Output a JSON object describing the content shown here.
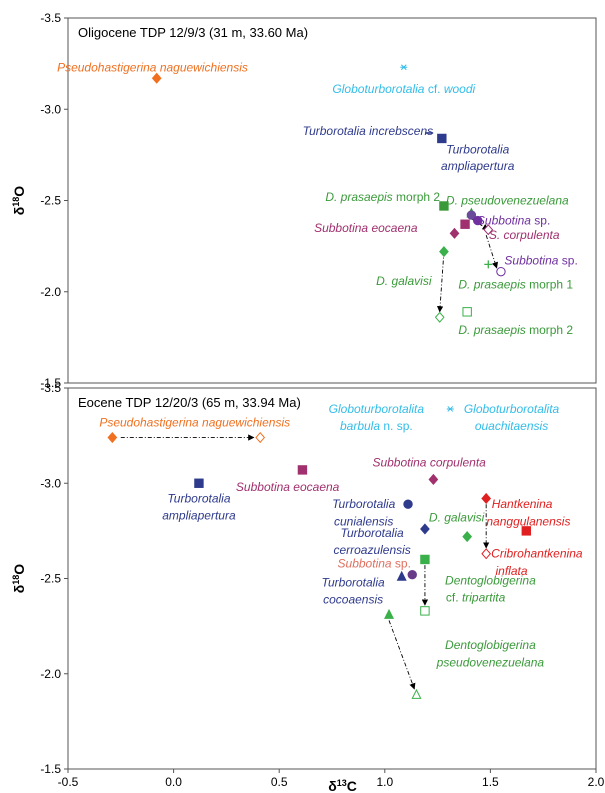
{
  "chart_data": [
    {
      "type": "scatter",
      "title": "Oligocene TDP 12/9/3 (31 m, 33.60 Ma)",
      "ylabel": "δ18O",
      "ylim": [
        -1.5,
        -3.5
      ],
      "y_reversed": true,
      "y_ticks": [
        "-3.5",
        "-3.0",
        "-2.5",
        "-2.0",
        "-1.5"
      ],
      "points": [
        {
          "x": -0.08,
          "y": -3.17,
          "marker": "diamond",
          "filled": true,
          "color": "#f07020"
        },
        {
          "x": 1.09,
          "y": -3.23,
          "marker": "asterisk",
          "filled": true,
          "color": "#33bde8"
        },
        {
          "x": 1.21,
          "y": -2.87,
          "marker": "dash",
          "filled": true,
          "color": "#2e3a8c"
        },
        {
          "x": 1.27,
          "y": -2.84,
          "marker": "square",
          "filled": true,
          "color": "#2e3a8c"
        },
        {
          "x": 1.28,
          "y": -2.47,
          "marker": "square",
          "filled": true,
          "color": "#3a9a3a"
        },
        {
          "x": 1.41,
          "y": -2.43,
          "marker": "triangle",
          "filled": true,
          "color": "#3a9a3a"
        },
        {
          "x": 1.41,
          "y": -2.42,
          "marker": "circle",
          "filled": true,
          "color": "#6a4a9a"
        },
        {
          "x": 1.44,
          "y": -2.39,
          "marker": "circle",
          "filled": true,
          "color": "#7030a0"
        },
        {
          "x": 1.38,
          "y": -2.37,
          "marker": "square",
          "filled": true,
          "color": "#a0306e"
        },
        {
          "x": 1.33,
          "y": -2.32,
          "marker": "diamond",
          "filled": true,
          "color": "#a0306e"
        },
        {
          "x": 1.49,
          "y": -2.34,
          "marker": "diamond",
          "filled": false,
          "color": "#a0306e"
        },
        {
          "x": 1.28,
          "y": -2.22,
          "marker": "diamond",
          "filled": true,
          "color": "#3ab04a"
        },
        {
          "x": 1.49,
          "y": -2.15,
          "marker": "plus",
          "filled": true,
          "color": "#3ab04a"
        },
        {
          "x": 1.55,
          "y": -2.11,
          "marker": "circle",
          "filled": false,
          "color": "#7030a0"
        },
        {
          "x": 1.26,
          "y": -1.86,
          "marker": "diamond",
          "filled": false,
          "color": "#3ab04a"
        },
        {
          "x": 1.39,
          "y": -1.89,
          "marker": "square",
          "filled": false,
          "color": "#3ab04a"
        }
      ],
      "arrows": [
        {
          "from": [
            1.28,
            -2.22
          ],
          "to": [
            1.26,
            -1.89
          ]
        },
        {
          "from": [
            1.41,
            -2.4
          ],
          "to": [
            1.49,
            -2.34
          ]
        },
        {
          "from": [
            1.48,
            -2.31
          ],
          "to": [
            1.53,
            -2.13
          ]
        }
      ],
      "labels": [
        {
          "parts": [
            {
              "t": "Pseudohastigerina naguewichiensis",
              "i": true
            }
          ],
          "color": "#f07020",
          "x": -0.1,
          "y": -3.23,
          "anchor": "middle"
        },
        {
          "parts": [
            {
              "t": "Globoturborotalia",
              "i": true
            },
            {
              "t": " cf. ",
              "i": false
            },
            {
              "t": "woodi",
              "i": true
            }
          ],
          "color": "#33bde8",
          "x": 1.09,
          "y": -3.11,
          "anchor": "middle"
        },
        {
          "parts": [
            {
              "t": "Turborotalia increbscens",
              "i": true
            }
          ],
          "color": "#2e3a8c",
          "x": 0.92,
          "y": -2.88,
          "anchor": "middle"
        },
        {
          "parts": [
            {
              "t": "Turborotalia",
              "i": true
            }
          ],
          "color": "#2e3a8c",
          "x": 1.44,
          "y": -2.78,
          "anchor": "middle"
        },
        {
          "parts": [
            {
              "t": "ampliapertura",
              "i": true
            }
          ],
          "color": "#2e3a8c",
          "x": 1.44,
          "y": -2.69,
          "anchor": "middle"
        },
        {
          "parts": [
            {
              "t": "D. prasaepis",
              "i": true
            },
            {
              "t": " morph 2",
              "i": false
            }
          ],
          "color": "#3a9a3a",
          "x": 0.99,
          "y": -2.52,
          "anchor": "middle"
        },
        {
          "parts": [
            {
              "t": "D. pseudovenezuelana",
              "i": true
            }
          ],
          "color": "#3a9a3a",
          "x": 1.58,
          "y": -2.5,
          "anchor": "middle"
        },
        {
          "parts": [
            {
              "t": "Subbotina eocaena",
              "i": true
            }
          ],
          "color": "#a0306e",
          "x": 0.91,
          "y": -2.35,
          "anchor": "middle"
        },
        {
          "parts": [
            {
              "t": "Subbotina",
              "i": true
            },
            {
              "t": " sp.",
              "i": false
            }
          ],
          "color": "#7030a0",
          "x": 1.61,
          "y": -2.39,
          "anchor": "middle"
        },
        {
          "parts": [
            {
              "t": "S. corpulenta",
              "i": true
            }
          ],
          "color": "#a0306e",
          "x": 1.66,
          "y": -2.31,
          "anchor": "middle"
        },
        {
          "parts": [
            {
              "t": "Subbotina",
              "i": true
            },
            {
              "t": " sp.",
              "i": false
            }
          ],
          "color": "#7030a0",
          "x": 1.74,
          "y": -2.17,
          "anchor": "middle"
        },
        {
          "parts": [
            {
              "t": "D. galavisi",
              "i": true
            }
          ],
          "color": "#3a9a3a",
          "x": 1.09,
          "y": -2.06,
          "anchor": "middle"
        },
        {
          "parts": [
            {
              "t": "D. prasaepis",
              "i": true
            },
            {
              "t": " morph 1",
              "i": false
            }
          ],
          "color": "#3a9a3a",
          "x": 1.62,
          "y": -2.04,
          "anchor": "middle"
        },
        {
          "parts": [
            {
              "t": "D. prasaepis",
              "i": true
            },
            {
              "t": " morph 2",
              "i": false
            }
          ],
          "color": "#3a9a3a",
          "x": 1.62,
          "y": -1.79,
          "anchor": "middle"
        }
      ]
    },
    {
      "type": "scatter",
      "title": "Eocene TDP 12/20/3 (65 m, 33.94 Ma)",
      "xlabel": "δ13C",
      "ylabel": "δ18O",
      "xlim": [
        -0.5,
        2.0
      ],
      "ylim": [
        -1.5,
        -3.5
      ],
      "y_reversed": true,
      "x_ticks": [
        "-0.5",
        "0.0",
        "0.5",
        "1.0",
        "1.5",
        "2.0"
      ],
      "y_ticks": [
        "-3.5",
        "-3.0",
        "-2.5",
        "-2.0",
        "-1.5"
      ],
      "points": [
        {
          "x": -0.29,
          "y": -3.24,
          "marker": "diamond",
          "filled": true,
          "color": "#f07020"
        },
        {
          "x": 0.41,
          "y": -3.24,
          "marker": "diamond",
          "filled": false,
          "color": "#f07020"
        },
        {
          "x": 1.31,
          "y": -3.39,
          "marker": "asterisk",
          "filled": true,
          "color": "#33bde8"
        },
        {
          "x": 0.12,
          "y": -3.0,
          "marker": "square",
          "filled": true,
          "color": "#2e3a8c"
        },
        {
          "x": 0.61,
          "y": -3.07,
          "marker": "square",
          "filled": true,
          "color": "#a0306e"
        },
        {
          "x": 1.23,
          "y": -3.02,
          "marker": "diamond",
          "filled": true,
          "color": "#a0306e"
        },
        {
          "x": 1.11,
          "y": -2.89,
          "marker": "circle",
          "filled": true,
          "color": "#2e3a8c"
        },
        {
          "x": 1.19,
          "y": -2.76,
          "marker": "diamond",
          "filled": true,
          "color": "#2e3a8c"
        },
        {
          "x": 1.48,
          "y": -2.92,
          "marker": "diamond",
          "filled": true,
          "color": "#e02020"
        },
        {
          "x": 1.67,
          "y": -2.75,
          "marker": "square",
          "filled": true,
          "color": "#e02020"
        },
        {
          "x": 1.39,
          "y": -2.72,
          "marker": "diamond",
          "filled": true,
          "color": "#3ab04a"
        },
        {
          "x": 1.48,
          "y": -2.63,
          "marker": "diamond",
          "filled": false,
          "color": "#e02020"
        },
        {
          "x": 1.19,
          "y": -2.6,
          "marker": "square",
          "filled": true,
          "color": "#3ab04a"
        },
        {
          "x": 1.13,
          "y": -2.52,
          "marker": "circle",
          "filled": true,
          "color": "#6a3a8a"
        },
        {
          "x": 1.08,
          "y": -2.51,
          "marker": "triangle",
          "filled": true,
          "color": "#2e3a8c"
        },
        {
          "x": 1.19,
          "y": -2.33,
          "marker": "square",
          "filled": false,
          "color": "#3ab04a"
        },
        {
          "x": 1.02,
          "y": -2.31,
          "marker": "triangle",
          "filled": true,
          "color": "#3ab04a"
        },
        {
          "x": 1.15,
          "y": -1.89,
          "marker": "triangle",
          "filled": false,
          "color": "#3ab04a"
        }
      ],
      "arrows": [
        {
          "from": [
            -0.25,
            -3.24
          ],
          "to": [
            0.38,
            -3.24
          ]
        },
        {
          "from": [
            1.48,
            -2.89
          ],
          "to": [
            1.48,
            -2.66
          ]
        },
        {
          "from": [
            1.19,
            -2.57
          ],
          "to": [
            1.19,
            -2.36
          ]
        },
        {
          "from": [
            1.02,
            -2.28
          ],
          "to": [
            1.14,
            -1.92
          ]
        }
      ],
      "labels": [
        {
          "parts": [
            {
              "t": "Pseudohastigerina naguewichiensis",
              "i": true
            }
          ],
          "color": "#f07020",
          "x": 0.1,
          "y": -3.32,
          "anchor": "middle"
        },
        {
          "parts": [
            {
              "t": "Globoturborotalita",
              "i": true
            }
          ],
          "color": "#33bde8",
          "x": 0.96,
          "y": -3.39,
          "anchor": "middle"
        },
        {
          "parts": [
            {
              "t": "barbula",
              "i": true
            },
            {
              "t": " n. sp.",
              "i": false
            }
          ],
          "color": "#33bde8",
          "x": 0.96,
          "y": -3.3,
          "anchor": "middle"
        },
        {
          "parts": [
            {
              "t": "Globoturborotalita",
              "i": true
            }
          ],
          "color": "#33bde8",
          "x": 1.6,
          "y": -3.39,
          "anchor": "middle"
        },
        {
          "parts": [
            {
              "t": "ouachitaensis",
              "i": true
            }
          ],
          "color": "#33bde8",
          "x": 1.6,
          "y": -3.3,
          "anchor": "middle"
        },
        {
          "parts": [
            {
              "t": "Subbotina corpulenta",
              "i": true
            }
          ],
          "color": "#a0306e",
          "x": 1.21,
          "y": -3.11,
          "anchor": "middle"
        },
        {
          "parts": [
            {
              "t": "Subbotina eocaena",
              "i": true
            }
          ],
          "color": "#a0306e",
          "x": 0.54,
          "y": -2.98,
          "anchor": "middle"
        },
        {
          "parts": [
            {
              "t": "Turborotalia",
              "i": true
            }
          ],
          "color": "#2e3a8c",
          "x": 0.12,
          "y": -2.92,
          "anchor": "middle"
        },
        {
          "parts": [
            {
              "t": "ampliapertura",
              "i": true
            }
          ],
          "color": "#2e3a8c",
          "x": 0.12,
          "y": -2.83,
          "anchor": "middle"
        },
        {
          "parts": [
            {
              "t": "Turborotalia",
              "i": true
            }
          ],
          "color": "#2e3a8c",
          "x": 0.9,
          "y": -2.89,
          "anchor": "middle"
        },
        {
          "parts": [
            {
              "t": "cunialensis",
              "i": true
            }
          ],
          "color": "#2e3a8c",
          "x": 0.9,
          "y": -2.8,
          "anchor": "middle"
        },
        {
          "parts": [
            {
              "t": "Turborotalia",
              "i": true
            }
          ],
          "color": "#2e3a8c",
          "x": 0.94,
          "y": -2.74,
          "anchor": "middle"
        },
        {
          "parts": [
            {
              "t": "cerroazulensis",
              "i": true
            }
          ],
          "color": "#2e3a8c",
          "x": 0.94,
          "y": -2.65,
          "anchor": "middle"
        },
        {
          "parts": [
            {
              "t": "D. galavisi",
              "i": true
            }
          ],
          "color": "#3a9a3a",
          "x": 1.34,
          "y": -2.82,
          "anchor": "middle"
        },
        {
          "parts": [
            {
              "t": "Hantkenina",
              "i": true
            }
          ],
          "color": "#e02020",
          "x": 1.65,
          "y": -2.89,
          "anchor": "middle"
        },
        {
          "parts": [
            {
              "t": "nanggulanensis",
              "i": true
            }
          ],
          "color": "#e02020",
          "x": 1.68,
          "y": -2.8,
          "anchor": "middle"
        },
        {
          "parts": [
            {
              "t": "Cribrohantkenina",
              "i": true
            }
          ],
          "color": "#e02020",
          "x": 1.72,
          "y": -2.63,
          "anchor": "middle"
        },
        {
          "parts": [
            {
              "t": "inflata",
              "i": true
            }
          ],
          "color": "#e02020",
          "x": 1.6,
          "y": -2.54,
          "anchor": "middle"
        },
        {
          "parts": [
            {
              "t": "Subbotina",
              "i": true
            },
            {
              "t": " sp.",
              "i": false
            }
          ],
          "color": "#e07060",
          "x": 0.95,
          "y": -2.58,
          "anchor": "middle"
        },
        {
          "parts": [
            {
              "t": "Turborotalia",
              "i": true
            }
          ],
          "color": "#2e3a8c",
          "x": 0.85,
          "y": -2.48,
          "anchor": "middle"
        },
        {
          "parts": [
            {
              "t": "cocoaensis",
              "i": true
            }
          ],
          "color": "#2e3a8c",
          "x": 0.85,
          "y": -2.39,
          "anchor": "middle"
        },
        {
          "parts": [
            {
              "t": "Dentoglobigerina",
              "i": true
            }
          ],
          "color": "#3a9a3a",
          "x": 1.5,
          "y": -2.49,
          "anchor": "middle"
        },
        {
          "parts": [
            {
              "t": "cf. ",
              "i": false
            },
            {
              "t": "tripartita",
              "i": true
            }
          ],
          "color": "#3a9a3a",
          "x": 1.43,
          "y": -2.4,
          "anchor": "middle"
        },
        {
          "parts": [
            {
              "t": "Dentoglobigerina",
              "i": true
            }
          ],
          "color": "#3a9a3a",
          "x": 1.5,
          "y": -2.15,
          "anchor": "middle"
        },
        {
          "parts": [
            {
              "t": "pseudovenezuelana",
              "i": true
            }
          ],
          "color": "#3a9a3a",
          "x": 1.5,
          "y": -2.06,
          "anchor": "middle"
        }
      ]
    }
  ]
}
